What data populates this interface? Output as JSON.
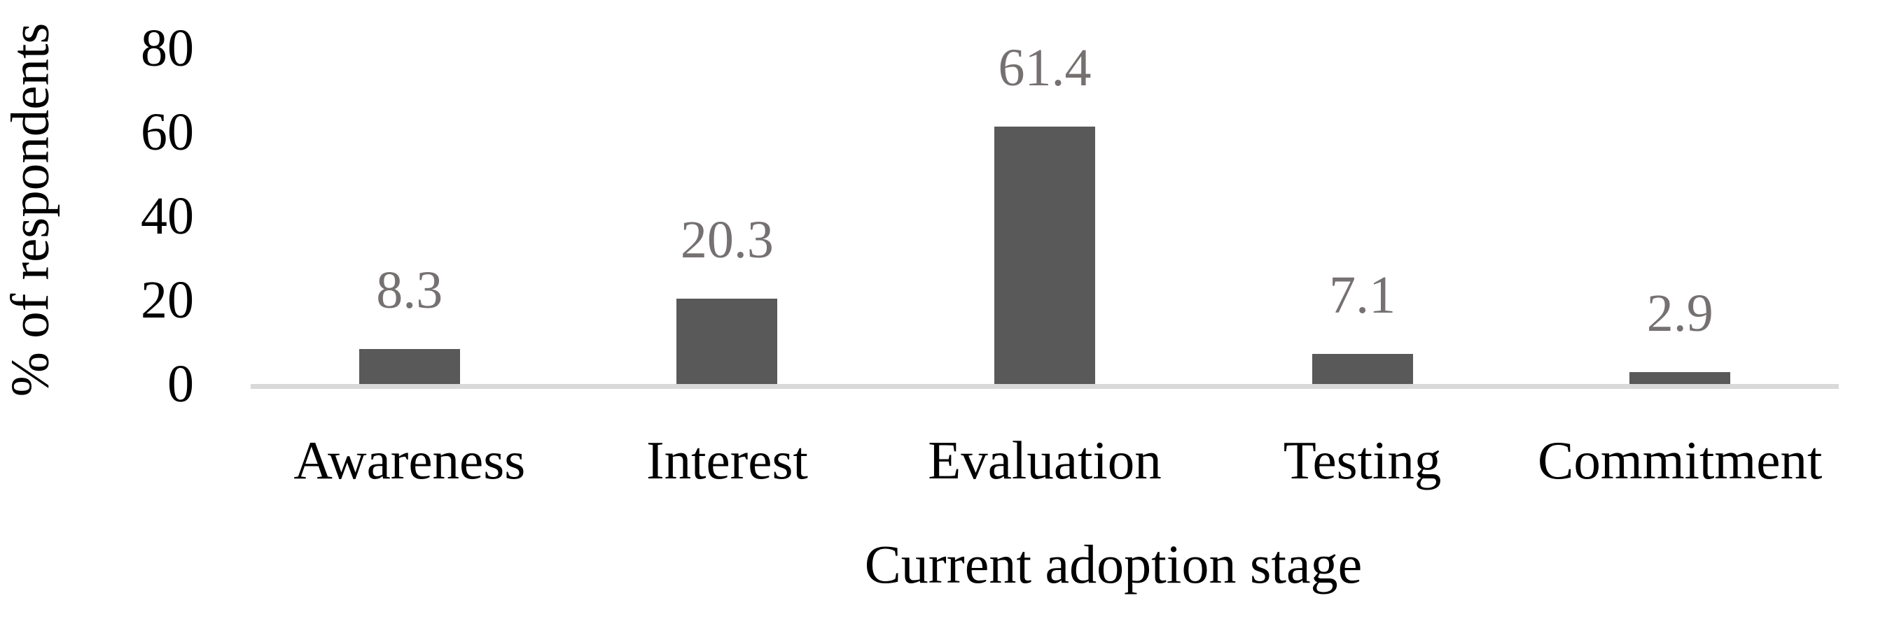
{
  "chart_data": {
    "type": "bar",
    "categories": [
      "Awareness",
      "Interest",
      "Evaluation",
      "Testing",
      "Commitment"
    ],
    "values": [
      8.3,
      20.3,
      61.4,
      7.1,
      2.9
    ],
    "value_labels": [
      "8.3",
      "20.3",
      "61.4",
      "7.1",
      "2.9"
    ],
    "title": "",
    "xlabel": "Current adoption stage",
    "ylabel": "% of respondents",
    "ylim": [
      0,
      80
    ],
    "ytick_step": 20,
    "ytick_labels": [
      "0",
      "20",
      "40",
      "60",
      "80"
    ],
    "grid": false,
    "legend_position": "none",
    "colors": {
      "bar": "#595959",
      "value_label": "#767171",
      "axis_line": "#d9d9d9",
      "text": "#000000"
    }
  }
}
